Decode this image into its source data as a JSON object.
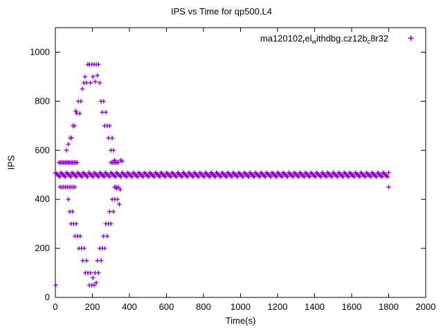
{
  "title": "IPS vs Time for qp500.L4",
  "axes": {
    "xlabel": "Time(s)",
    "ylabel": "IPS",
    "xlim": [
      0,
      2000
    ],
    "ylim": [
      0,
      1100
    ],
    "xticks": [
      0,
      200,
      400,
      600,
      800,
      1000,
      1200,
      1400,
      1600,
      1800,
      2000
    ],
    "yticks": [
      0,
      200,
      400,
      600,
      800,
      1000
    ]
  },
  "legend": {
    "marker": "+",
    "segments": [
      {
        "text": "ma120102",
        "sub": false
      },
      {
        "text": "r",
        "sub": true
      },
      {
        "text": "el",
        "sub": false
      },
      {
        "text": "w",
        "sub": true
      },
      {
        "text": "ithdbg.cz12b",
        "sub": false
      },
      {
        "text": "c",
        "sub": true
      },
      {
        "text": "8r32",
        "sub": false
      }
    ]
  },
  "colors": {
    "series": "#9400d3",
    "axis": "#000000",
    "background": "#ffffff"
  },
  "chart_data": {
    "type": "scatter",
    "title": "IPS vs Time for qp500.L4",
    "xlabel": "Time(s)",
    "ylabel": "IPS",
    "xlim": [
      0,
      2000
    ],
    "ylim": [
      0,
      1100
    ],
    "grid": false,
    "legend_position": "top-right-inside",
    "series": [
      {
        "name": "ma120102_rel_withdbg.cz12b_c8r32",
        "color": "#9400d3",
        "marker": "plus",
        "steady_band": {
          "y": 500,
          "x_from": 0,
          "x_to": 1800,
          "step": 6
        },
        "points": [
          [
            2,
            50
          ],
          [
            20,
            550
          ],
          [
            27,
            550
          ],
          [
            34,
            550
          ],
          [
            41,
            550
          ],
          [
            48,
            550
          ],
          [
            55,
            550
          ],
          [
            62,
            550
          ],
          [
            69,
            550
          ],
          [
            76,
            550
          ],
          [
            83,
            550
          ],
          [
            90,
            550
          ],
          [
            97,
            550
          ],
          [
            104,
            550
          ],
          [
            111,
            550
          ],
          [
            118,
            550
          ],
          [
            25,
            450
          ],
          [
            35,
            450
          ],
          [
            45,
            450
          ],
          [
            55,
            450
          ],
          [
            65,
            450
          ],
          [
            75,
            450
          ],
          [
            85,
            450
          ],
          [
            95,
            450
          ],
          [
            105,
            450
          ],
          [
            60,
            600
          ],
          [
            70,
            625
          ],
          [
            80,
            650
          ],
          [
            88,
            650
          ],
          [
            95,
            700
          ],
          [
            103,
            700
          ],
          [
            110,
            760
          ],
          [
            116,
            750
          ],
          [
            124,
            800
          ],
          [
            132,
            750
          ],
          [
            138,
            800
          ],
          [
            146,
            850
          ],
          [
            154,
            875
          ],
          [
            160,
            900
          ],
          [
            168,
            875
          ],
          [
            175,
            950
          ],
          [
            183,
            950
          ],
          [
            190,
            875
          ],
          [
            197,
            950
          ],
          [
            203,
            900
          ],
          [
            209,
            950
          ],
          [
            215,
            880
          ],
          [
            221,
            950
          ],
          [
            227,
            905
          ],
          [
            233,
            950
          ],
          [
            240,
            875
          ],
          [
            247,
            800
          ],
          [
            253,
            755
          ],
          [
            260,
            800
          ],
          [
            266,
            700
          ],
          [
            273,
            755
          ],
          [
            280,
            700
          ],
          [
            287,
            650
          ],
          [
            293,
            700
          ],
          [
            300,
            600
          ],
          [
            307,
            650
          ],
          [
            314,
            600
          ],
          [
            320,
            560
          ],
          [
            70,
            400
          ],
          [
            78,
            350
          ],
          [
            85,
            300
          ],
          [
            92,
            350
          ],
          [
            99,
            300
          ],
          [
            106,
            250
          ],
          [
            113,
            300
          ],
          [
            120,
            250
          ],
          [
            127,
            200
          ],
          [
            134,
            250
          ],
          [
            141,
            200
          ],
          [
            148,
            150
          ],
          [
            155,
            200
          ],
          [
            162,
            100
          ],
          [
            169,
            150
          ],
          [
            176,
            100
          ],
          [
            183,
            50
          ],
          [
            190,
            100
          ],
          [
            197,
            50
          ],
          [
            203,
            80
          ],
          [
            209,
            50
          ],
          [
            215,
            100
          ],
          [
            221,
            60
          ],
          [
            227,
            150
          ],
          [
            233,
            100
          ],
          [
            240,
            200
          ],
          [
            247,
            150
          ],
          [
            253,
            200
          ],
          [
            260,
            250
          ],
          [
            266,
            200
          ],
          [
            273,
            300
          ],
          [
            280,
            250
          ],
          [
            287,
            300
          ],
          [
            293,
            350
          ],
          [
            300,
            300
          ],
          [
            307,
            400
          ],
          [
            314,
            350
          ],
          [
            321,
            400
          ],
          [
            328,
            450
          ],
          [
            300,
            550
          ],
          [
            308,
            550
          ],
          [
            316,
            550
          ],
          [
            324,
            550
          ],
          [
            332,
            550
          ],
          [
            340,
            550
          ],
          [
            352,
            560
          ],
          [
            362,
            555
          ],
          [
            320,
            450
          ],
          [
            330,
            445
          ],
          [
            340,
            450
          ],
          [
            350,
            440
          ],
          [
            335,
            400
          ],
          [
            345,
            380
          ],
          [
            1800,
            450
          ]
        ]
      }
    ]
  }
}
